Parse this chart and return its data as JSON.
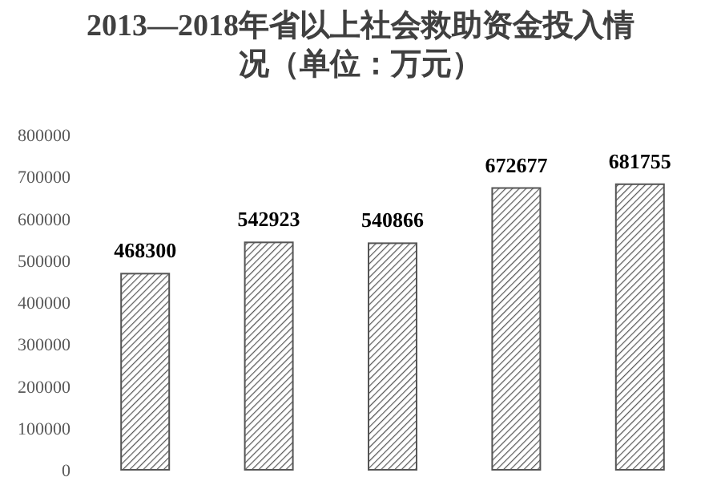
{
  "chart_data": {
    "type": "bar",
    "title": "2013—2018年省以上社会救助资金投入情况（单位：万元）",
    "categories": [
      null,
      null,
      null,
      null,
      null
    ],
    "values": [
      468300,
      542923,
      540866,
      672677,
      681755
    ],
    "color": "#555555",
    "ylim": [
      0,
      800000
    ],
    "yticks": [
      0,
      100000,
      200000,
      300000,
      400000,
      500000,
      600000,
      700000,
      800000
    ],
    "data_labels": true,
    "grid": false
  }
}
